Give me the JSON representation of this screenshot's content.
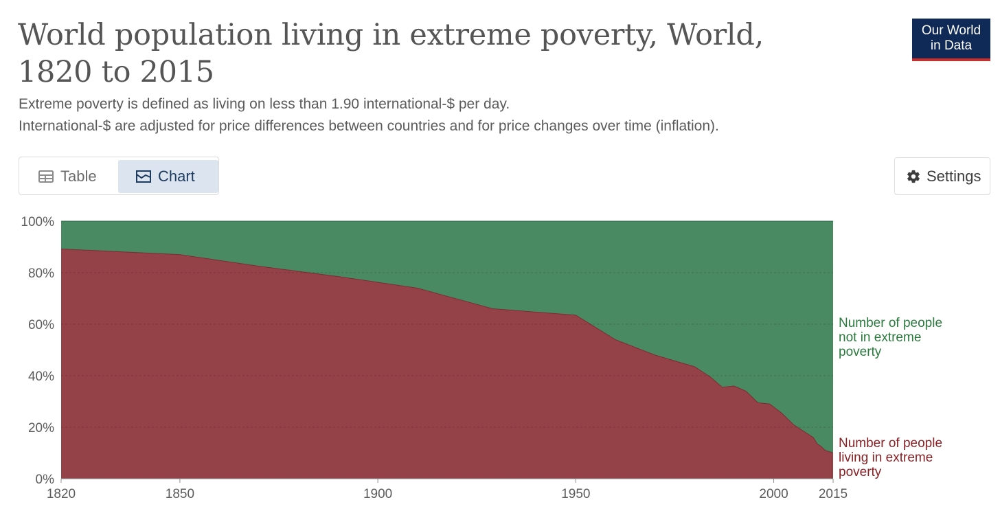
{
  "header": {
    "title": "World population living in extreme poverty, World, 1820 to 2015",
    "subtitle_line1": "Extreme poverty is defined as living on less than 1.90 international-$ per day.",
    "subtitle_line2": "International-$ are adjusted for price differences between countries and for price changes over time (inflation)."
  },
  "logo": {
    "line1": "Our World",
    "line2": "in Data"
  },
  "tabs": {
    "table_label": "Table",
    "chart_label": "Chart",
    "active": "Chart"
  },
  "settings_label": "Settings",
  "legend": {
    "not_poor": [
      "Number of people",
      "not in extreme",
      "poverty"
    ],
    "poor": [
      "Number of people",
      "living in extreme",
      "poverty"
    ]
  },
  "colors": {
    "poor": "#944247",
    "not_poor": "#4a8a62",
    "title": "#555555",
    "brand": "#0f2a56",
    "accent": "#cf2a2a"
  },
  "chart_data": {
    "type": "area",
    "stacked": "relative",
    "title": "World population living in extreme poverty, World, 1820 to 2015",
    "xlabel": "",
    "ylabel": "",
    "xlim": [
      1820,
      2015
    ],
    "ylim": [
      0,
      100
    ],
    "x_ticks": [
      1820,
      1850,
      1900,
      1950,
      2000,
      2015
    ],
    "y_ticks": [
      "0%",
      "20%",
      "40%",
      "60%",
      "80%",
      "100%"
    ],
    "y_tick_values": [
      0,
      20,
      40,
      60,
      80,
      100
    ],
    "series": [
      {
        "name": "Number of people living in extreme poverty",
        "x": [
          1820,
          1850,
          1870,
          1890,
          1910,
          1929,
          1950,
          1960,
          1970,
          1980,
          1984,
          1987,
          1990,
          1993,
          1996,
          1999,
          2002,
          2005,
          2008,
          2010,
          2011,
          2012,
          2013,
          2015
        ],
        "values": [
          89.2,
          87.0,
          82.5,
          78.5,
          74.0,
          66.0,
          63.5,
          54.0,
          48.0,
          43.5,
          39.5,
          35.5,
          36.0,
          34.0,
          29.5,
          29.0,
          25.5,
          21.0,
          18.0,
          16.0,
          13.5,
          12.5,
          11.0,
          10.0
        ]
      },
      {
        "name": "Number of people not in extreme poverty",
        "x": [
          1820,
          1850,
          1870,
          1890,
          1910,
          1929,
          1950,
          1960,
          1970,
          1980,
          1984,
          1987,
          1990,
          1993,
          1996,
          1999,
          2002,
          2005,
          2008,
          2010,
          2011,
          2012,
          2013,
          2015
        ],
        "values": [
          10.8,
          13.0,
          17.5,
          21.5,
          26.0,
          34.0,
          36.5,
          46.0,
          52.0,
          56.5,
          60.5,
          64.5,
          64.0,
          66.0,
          70.5,
          71.0,
          74.5,
          79.0,
          82.0,
          84.0,
          86.5,
          87.5,
          89.0,
          90.0
        ]
      }
    ]
  }
}
